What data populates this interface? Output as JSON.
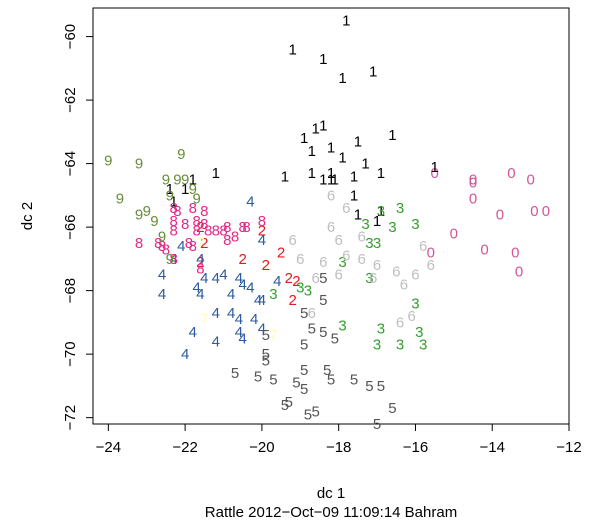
{
  "chart_data": {
    "type": "scatter",
    "xlabel": "dc 1",
    "ylabel": "dc 2",
    "caption": "Rattle 2012−Oct−09 11:09:14 Bahram",
    "xlim": [
      -24.4,
      -12
    ],
    "ylim": [
      -72.2,
      -59.1
    ],
    "x_ticks": [
      -24,
      -22,
      -20,
      -18,
      -16,
      -14,
      -12
    ],
    "y_ticks": [
      -60,
      -62,
      -64,
      -66,
      -68,
      -70,
      -72
    ],
    "x_tick_labels": [
      "−24",
      "−22",
      "−20",
      "−18",
      "−16",
      "−14",
      "−12"
    ],
    "y_tick_labels": [
      "−60",
      "−62",
      "−64",
      "−66",
      "−68",
      "−70",
      "−72"
    ],
    "grid": false,
    "legend": "none",
    "series": [
      {
        "label": "0",
        "color": "#d4559a",
        "points": [
          [
            -15.5,
            -64.3
          ],
          [
            -14.5,
            -64.5
          ],
          [
            -14.5,
            -64.6
          ],
          [
            -13.5,
            -64.3
          ],
          [
            -13.0,
            -64.5
          ],
          [
            -14.5,
            -65.1
          ],
          [
            -15.0,
            -66.2
          ],
          [
            -12.9,
            -65.5
          ],
          [
            -12.6,
            -65.5
          ],
          [
            -13.8,
            -65.6
          ],
          [
            -14.2,
            -66.7
          ],
          [
            -13.4,
            -66.8
          ],
          [
            -15.6,
            -66.8
          ],
          [
            -13.3,
            -67.4
          ]
        ]
      },
      {
        "label": "1",
        "color": "#000000",
        "points": [
          [
            -17.8,
            -59.5
          ],
          [
            -19.2,
            -60.4
          ],
          [
            -18.4,
            -60.7
          ],
          [
            -17.1,
            -61.1
          ],
          [
            -17.9,
            -61.3
          ],
          [
            -18.6,
            -62.9
          ],
          [
            -18.4,
            -62.8
          ],
          [
            -18.9,
            -63.2
          ],
          [
            -18.7,
            -63.6
          ],
          [
            -18.2,
            -63.5
          ],
          [
            -17.9,
            -63.8
          ],
          [
            -17.5,
            -63.3
          ],
          [
            -16.6,
            -63.1
          ],
          [
            -17.3,
            -64.0
          ],
          [
            -18.2,
            -64.3
          ],
          [
            -18.7,
            -64.3
          ],
          [
            -18.2,
            -64.5
          ],
          [
            -18.4,
            -64.5
          ],
          [
            -18.1,
            -64.5
          ],
          [
            -17.6,
            -64.4
          ],
          [
            -16.9,
            -64.3
          ],
          [
            -19.4,
            -64.4
          ],
          [
            -17.6,
            -65.0
          ],
          [
            -16.9,
            -65.5
          ],
          [
            -17.5,
            -65.6
          ],
          [
            -17.0,
            -65.8
          ],
          [
            -21.2,
            -64.3
          ],
          [
            -21.8,
            -64.5
          ],
          [
            -22.0,
            -64.8
          ],
          [
            -22.4,
            -64.8
          ],
          [
            -22.3,
            -65.2
          ],
          [
            -15.5,
            -64.1
          ]
        ]
      },
      {
        "label": "2",
        "color": "#e41a1c",
        "points": [
          [
            -21.6,
            -66.0
          ],
          [
            -21.5,
            -66.5
          ],
          [
            -20.0,
            -66.1
          ],
          [
            -19.5,
            -66.8
          ],
          [
            -20.5,
            -67.0
          ],
          [
            -19.9,
            -67.2
          ],
          [
            -19.3,
            -67.6
          ],
          [
            -19.1,
            -67.7
          ],
          [
            -21.6,
            -67.1
          ],
          [
            -19.2,
            -68.3
          ]
        ]
      },
      {
        "label": "3",
        "color": "#33a02c",
        "points": [
          [
            -16.9,
            -65.5
          ],
          [
            -16.4,
            -65.4
          ],
          [
            -16.6,
            -66.0
          ],
          [
            -17.3,
            -65.9
          ],
          [
            -16.0,
            -65.9
          ],
          [
            -17.2,
            -66.5
          ],
          [
            -17.0,
            -66.5
          ],
          [
            -17.9,
            -67.1
          ],
          [
            -17.2,
            -67.6
          ],
          [
            -19.0,
            -67.9
          ],
          [
            -18.8,
            -68.0
          ],
          [
            -19.7,
            -68.1
          ],
          [
            -16.0,
            -68.4
          ],
          [
            -17.9,
            -69.1
          ],
          [
            -16.9,
            -69.2
          ],
          [
            -15.9,
            -69.3
          ],
          [
            -15.8,
            -69.7
          ],
          [
            -16.4,
            -69.7
          ],
          [
            -17.0,
            -69.7
          ]
        ]
      },
      {
        "label": "4",
        "color": "#2c5aa0",
        "points": [
          [
            -20.3,
            -65.2
          ],
          [
            -20.0,
            -66.4
          ],
          [
            -22.1,
            -66.6
          ],
          [
            -22.3,
            -67.0
          ],
          [
            -21.6,
            -67.0
          ],
          [
            -22.6,
            -67.5
          ],
          [
            -21.0,
            -67.5
          ],
          [
            -21.5,
            -67.6
          ],
          [
            -21.2,
            -67.6
          ],
          [
            -20.6,
            -67.6
          ],
          [
            -21.7,
            -67.9
          ],
          [
            -21.6,
            -68.1
          ],
          [
            -22.6,
            -68.1
          ],
          [
            -20.8,
            -68.1
          ],
          [
            -20.1,
            -68.3
          ],
          [
            -21.2,
            -68.7
          ],
          [
            -20.8,
            -68.7
          ],
          [
            -20.6,
            -68.9
          ],
          [
            -20.2,
            -68.9
          ],
          [
            -20.0,
            -69.2
          ],
          [
            -21.8,
            -69.3
          ],
          [
            -20.6,
            -69.3
          ],
          [
            -20.5,
            -69.5
          ],
          [
            -21.2,
            -69.6
          ],
          [
            -20.0,
            -68.3
          ],
          [
            -22.0,
            -70.0
          ],
          [
            -19.6,
            -67.7
          ],
          [
            -20.5,
            -67.8
          ],
          [
            -20.3,
            -67.9
          ]
        ]
      },
      {
        "label": "5",
        "color": "#555555",
        "points": [
          [
            -18.4,
            -67.6
          ],
          [
            -18.9,
            -68.7
          ],
          [
            -18.4,
            -68.3
          ],
          [
            -18.7,
            -69.2
          ],
          [
            -18.4,
            -69.3
          ],
          [
            -18.1,
            -69.5
          ],
          [
            -19.9,
            -69.4
          ],
          [
            -19.9,
            -70.0
          ],
          [
            -18.9,
            -69.7
          ],
          [
            -19.9,
            -70.2
          ],
          [
            -18.9,
            -70.5
          ],
          [
            -18.3,
            -70.5
          ],
          [
            -20.7,
            -70.6
          ],
          [
            -20.1,
            -70.7
          ],
          [
            -19.7,
            -70.8
          ],
          [
            -18.2,
            -70.8
          ],
          [
            -17.6,
            -70.8
          ],
          [
            -19.1,
            -70.9
          ],
          [
            -17.2,
            -71.0
          ],
          [
            -18.9,
            -71.1
          ],
          [
            -16.9,
            -71.0
          ],
          [
            -19.3,
            -71.5
          ],
          [
            -19.4,
            -71.6
          ],
          [
            -18.6,
            -71.8
          ],
          [
            -18.8,
            -71.9
          ],
          [
            -16.6,
            -71.7
          ],
          [
            -17.0,
            -72.2
          ]
        ]
      },
      {
        "label": "6",
        "color": "#bfbfbf",
        "points": [
          [
            -18.2,
            -65.0
          ],
          [
            -17.8,
            -65.4
          ],
          [
            -18.2,
            -66.0
          ],
          [
            -18.0,
            -66.4
          ],
          [
            -17.4,
            -66.3
          ],
          [
            -17.8,
            -66.9
          ],
          [
            -18.4,
            -67.1
          ],
          [
            -17.4,
            -67.0
          ],
          [
            -17.0,
            -67.2
          ],
          [
            -16.5,
            -67.4
          ],
          [
            -17.1,
            -67.6
          ],
          [
            -18.0,
            -67.5
          ],
          [
            -18.6,
            -67.6
          ],
          [
            -16.0,
            -67.5
          ],
          [
            -15.6,
            -67.2
          ],
          [
            -19.2,
            -66.4
          ],
          [
            -19.0,
            -67.0
          ],
          [
            -16.3,
            -67.8
          ],
          [
            -18.7,
            -68.7
          ],
          [
            -16.1,
            -68.8
          ],
          [
            -16.4,
            -69.0
          ],
          [
            -15.8,
            -66.6
          ]
        ]
      },
      {
        "label": "7",
        "color": "#ffffb3",
        "points": [
          [
            -21.6,
            -66.5
          ],
          [
            -21.5,
            -68.9
          ],
          [
            -19.7,
            -69.4
          ]
        ]
      },
      {
        "label": "8",
        "color": "#e7298a",
        "points": [
          [
            -22.2,
            -65.5
          ],
          [
            -22.3,
            -65.8
          ],
          [
            -22.3,
            -66.1
          ],
          [
            -22.7,
            -66.5
          ],
          [
            -22.0,
            -65.9
          ],
          [
            -21.7,
            -65.8
          ],
          [
            -21.5,
            -65.9
          ],
          [
            -21.8,
            -65.4
          ],
          [
            -21.5,
            -65.5
          ],
          [
            -21.7,
            -66.1
          ],
          [
            -21.4,
            -66.1
          ],
          [
            -21.2,
            -66.1
          ],
          [
            -21.0,
            -66.1
          ],
          [
            -20.9,
            -66.0
          ],
          [
            -20.4,
            -66.0
          ],
          [
            -20.5,
            -66.0
          ],
          [
            -20.7,
            -66.3
          ],
          [
            -20.9,
            -66.4
          ],
          [
            -21.8,
            -66.6
          ],
          [
            -21.9,
            -66.5
          ],
          [
            -22.5,
            -66.7
          ],
          [
            -22.3,
            -67.0
          ],
          [
            -20.0,
            -65.8
          ],
          [
            -21.6,
            -67.3
          ],
          [
            -22.3,
            -65.4
          ],
          [
            -22.6,
            -66.6
          ],
          [
            -23.2,
            -66.5
          ]
        ]
      },
      {
        "label": "9",
        "color": "#6a8c3a",
        "points": [
          [
            -24.0,
            -63.9
          ],
          [
            -23.2,
            -64.0
          ],
          [
            -22.1,
            -63.7
          ],
          [
            -22.5,
            -64.5
          ],
          [
            -22.2,
            -64.5
          ],
          [
            -22.0,
            -64.5
          ],
          [
            -21.8,
            -64.8
          ],
          [
            -21.7,
            -65.1
          ],
          [
            -22.4,
            -65.0
          ],
          [
            -23.7,
            -65.1
          ],
          [
            -23.0,
            -65.5
          ],
          [
            -22.8,
            -65.8
          ],
          [
            -23.2,
            -65.6
          ],
          [
            -22.6,
            -66.3
          ],
          [
            -22.4,
            -67.0
          ]
        ]
      }
    ]
  }
}
